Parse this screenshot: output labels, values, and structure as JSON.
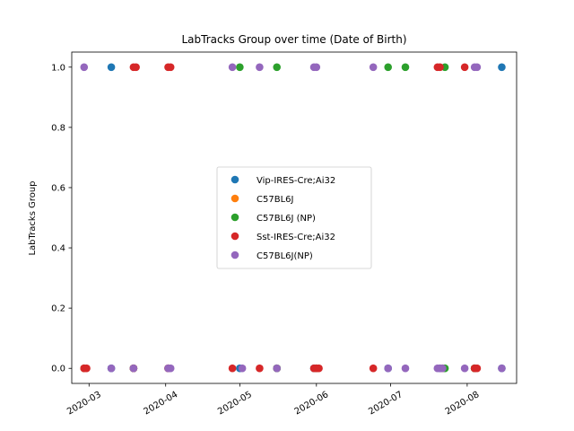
{
  "chart_data": {
    "type": "scatter",
    "title": "LabTracks Group over time (Date of Birth)",
    "xlabel": "",
    "ylabel": "LabTracks Group",
    "xlim": [
      "2020-02-23",
      "2020-08-21"
    ],
    "ylim": [
      -0.05,
      1.05
    ],
    "x_ticks": [
      "2020-03",
      "2020-04",
      "2020-05",
      "2020-06",
      "2020-07",
      "2020-08"
    ],
    "y_ticks": [
      "0.0",
      "0.2",
      "0.4",
      "0.6",
      "0.8",
      "1.0"
    ],
    "legend_position": "center",
    "grid": false,
    "series": [
      {
        "name": "Vip-IRES-Cre;Ai32",
        "color": "#1f77b4",
        "points": [
          {
            "x": "2020-03-10",
            "y": 1
          },
          {
            "x": "2020-08-15",
            "y": 1
          },
          {
            "x": "2020-02-28",
            "y": 0
          },
          {
            "x": "2020-03-10",
            "y": 0
          },
          {
            "x": "2020-03-19",
            "y": 0
          },
          {
            "x": "2020-04-02",
            "y": 0
          },
          {
            "x": "2020-05-01",
            "y": 0
          },
          {
            "x": "2020-05-16",
            "y": 0
          },
          {
            "x": "2020-05-31",
            "y": 0
          },
          {
            "x": "2020-06-30",
            "y": 0
          },
          {
            "x": "2020-07-21",
            "y": 0
          },
          {
            "x": "2020-08-04",
            "y": 0
          },
          {
            "x": "2020-08-15",
            "y": 0
          }
        ]
      },
      {
        "name": "C57BL6J",
        "color": "#ff7f0e",
        "points": [
          {
            "x": "2020-02-28",
            "y": 0
          },
          {
            "x": "2020-03-19",
            "y": 0
          },
          {
            "x": "2020-04-02",
            "y": 0
          },
          {
            "x": "2020-05-16",
            "y": 0
          },
          {
            "x": "2020-06-01",
            "y": 0
          },
          {
            "x": "2020-07-22",
            "y": 0
          },
          {
            "x": "2020-08-04",
            "y": 0
          }
        ]
      },
      {
        "name": "C57BL6J (NP)",
        "color": "#2ca02c",
        "points": [
          {
            "x": "2020-05-01",
            "y": 1
          },
          {
            "x": "2020-05-16",
            "y": 1
          },
          {
            "x": "2020-06-30",
            "y": 1
          },
          {
            "x": "2020-07-07",
            "y": 1
          },
          {
            "x": "2020-07-23",
            "y": 1
          },
          {
            "x": "2020-03-19",
            "y": 0
          },
          {
            "x": "2020-05-16",
            "y": 0
          },
          {
            "x": "2020-06-01",
            "y": 0
          },
          {
            "x": "2020-07-23",
            "y": 0
          },
          {
            "x": "2020-08-04",
            "y": 0
          }
        ]
      },
      {
        "name": "Sst-IRES-Cre;Ai32",
        "color": "#d62728",
        "points": [
          {
            "x": "2020-03-19",
            "y": 1
          },
          {
            "x": "2020-03-20",
            "y": 1
          },
          {
            "x": "2020-04-02",
            "y": 1
          },
          {
            "x": "2020-04-03",
            "y": 1
          },
          {
            "x": "2020-07-20",
            "y": 1
          },
          {
            "x": "2020-07-21",
            "y": 1
          },
          {
            "x": "2020-07-31",
            "y": 1
          },
          {
            "x": "2020-02-28",
            "y": 0
          },
          {
            "x": "2020-02-29",
            "y": 0
          },
          {
            "x": "2020-03-19",
            "y": 0
          },
          {
            "x": "2020-04-02",
            "y": 0
          },
          {
            "x": "2020-04-28",
            "y": 0
          },
          {
            "x": "2020-05-09",
            "y": 0
          },
          {
            "x": "2020-05-31",
            "y": 0
          },
          {
            "x": "2020-06-01",
            "y": 0
          },
          {
            "x": "2020-06-02",
            "y": 0
          },
          {
            "x": "2020-06-24",
            "y": 0
          },
          {
            "x": "2020-08-04",
            "y": 0
          },
          {
            "x": "2020-08-05",
            "y": 0
          }
        ]
      },
      {
        "name": "C57BL6J(NP)",
        "color": "#9467bd",
        "points": [
          {
            "x": "2020-02-28",
            "y": 1
          },
          {
            "x": "2020-04-28",
            "y": 1
          },
          {
            "x": "2020-05-09",
            "y": 1
          },
          {
            "x": "2020-05-31",
            "y": 1
          },
          {
            "x": "2020-06-01",
            "y": 1
          },
          {
            "x": "2020-06-24",
            "y": 1
          },
          {
            "x": "2020-08-04",
            "y": 1
          },
          {
            "x": "2020-08-05",
            "y": 1
          },
          {
            "x": "2020-03-10",
            "y": 0
          },
          {
            "x": "2020-03-19",
            "y": 0
          },
          {
            "x": "2020-04-02",
            "y": 0
          },
          {
            "x": "2020-04-03",
            "y": 0
          },
          {
            "x": "2020-05-02",
            "y": 0
          },
          {
            "x": "2020-05-16",
            "y": 0
          },
          {
            "x": "2020-06-30",
            "y": 0
          },
          {
            "x": "2020-07-07",
            "y": 0
          },
          {
            "x": "2020-07-20",
            "y": 0
          },
          {
            "x": "2020-07-21",
            "y": 0
          },
          {
            "x": "2020-07-22",
            "y": 0
          },
          {
            "x": "2020-07-31",
            "y": 0
          },
          {
            "x": "2020-08-15",
            "y": 0
          }
        ]
      }
    ]
  }
}
